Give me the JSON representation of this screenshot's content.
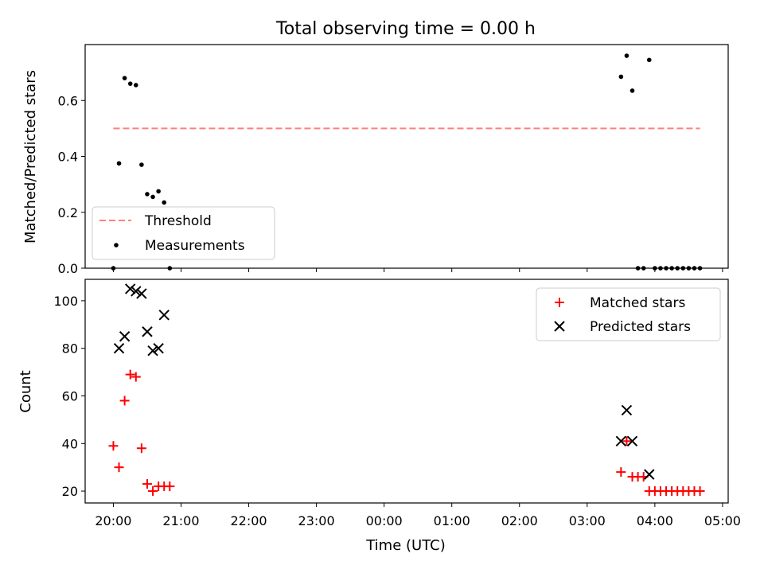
{
  "chart_data": [
    {
      "type": "scatter",
      "title": "Total observing time = 0.00 h",
      "ylabel": "Matched/Predicted stars",
      "xlabel": "",
      "ylim": [
        0,
        0.8
      ],
      "yticks": [
        0.0,
        0.2,
        0.4,
        0.6
      ],
      "ytick_labels": [
        "0.0",
        "0.2",
        "0.4",
        "0.6"
      ],
      "grid": false,
      "legend_position": "lower-left",
      "threshold": {
        "name": "Threshold",
        "value": 0.5,
        "x_start": "20:00",
        "x_end": "04:40",
        "color": "#ff7f7f",
        "style": "dashed"
      },
      "series": [
        {
          "name": "Measurements",
          "color": "#000000",
          "marker": "dot",
          "points": [
            {
              "x": "20:00",
              "y": 0.0
            },
            {
              "x": "20:05",
              "y": 0.375
            },
            {
              "x": "20:10",
              "y": 0.68
            },
            {
              "x": "20:15",
              "y": 0.66
            },
            {
              "x": "20:20",
              "y": 0.655
            },
            {
              "x": "20:25",
              "y": 0.37
            },
            {
              "x": "20:30",
              "y": 0.265
            },
            {
              "x": "20:35",
              "y": 0.255
            },
            {
              "x": "20:40",
              "y": 0.275
            },
            {
              "x": "20:45",
              "y": 0.235
            },
            {
              "x": "20:50",
              "y": 0.0
            },
            {
              "x": "03:30",
              "y": 0.685
            },
            {
              "x": "03:35",
              "y": 0.76
            },
            {
              "x": "03:40",
              "y": 0.635
            },
            {
              "x": "03:45",
              "y": 0.0
            },
            {
              "x": "03:50",
              "y": 0.0
            },
            {
              "x": "03:55",
              "y": 0.745
            },
            {
              "x": "04:00",
              "y": 0.0
            },
            {
              "x": "04:05",
              "y": 0.0
            },
            {
              "x": "04:10",
              "y": 0.0
            },
            {
              "x": "04:15",
              "y": 0.0
            },
            {
              "x": "04:20",
              "y": 0.0
            },
            {
              "x": "04:25",
              "y": 0.0
            },
            {
              "x": "04:30",
              "y": 0.0
            },
            {
              "x": "04:35",
              "y": 0.0
            },
            {
              "x": "04:40",
              "y": 0.0
            }
          ]
        }
      ]
    },
    {
      "type": "scatter",
      "title": "",
      "ylabel": "Count",
      "xlabel": "Time (UTC)",
      "ylim": [
        15,
        109
      ],
      "yticks": [
        20,
        40,
        60,
        80,
        100
      ],
      "ytick_labels": [
        "20",
        "40",
        "60",
        "80",
        "100"
      ],
      "grid": false,
      "legend_position": "upper-right",
      "series": [
        {
          "name": "Matched stars",
          "color": "#ff0000",
          "marker": "plus",
          "points": [
            {
              "x": "20:00",
              "y": 39
            },
            {
              "x": "20:05",
              "y": 30
            },
            {
              "x": "20:10",
              "y": 58
            },
            {
              "x": "20:15",
              "y": 69
            },
            {
              "x": "20:20",
              "y": 68
            },
            {
              "x": "20:25",
              "y": 38
            },
            {
              "x": "20:30",
              "y": 23
            },
            {
              "x": "20:35",
              "y": 20
            },
            {
              "x": "20:40",
              "y": 22
            },
            {
              "x": "20:45",
              "y": 22
            },
            {
              "x": "20:50",
              "y": 22
            },
            {
              "x": "03:30",
              "y": 28
            },
            {
              "x": "03:35",
              "y": 41
            },
            {
              "x": "03:40",
              "y": 26
            },
            {
              "x": "03:45",
              "y": 26
            },
            {
              "x": "03:50",
              "y": 26
            },
            {
              "x": "03:55",
              "y": 20
            },
            {
              "x": "04:00",
              "y": 20
            },
            {
              "x": "04:05",
              "y": 20
            },
            {
              "x": "04:10",
              "y": 20
            },
            {
              "x": "04:15",
              "y": 20
            },
            {
              "x": "04:20",
              "y": 20
            },
            {
              "x": "04:25",
              "y": 20
            },
            {
              "x": "04:30",
              "y": 20
            },
            {
              "x": "04:35",
              "y": 20
            },
            {
              "x": "04:40",
              "y": 20
            }
          ]
        },
        {
          "name": "Predicted stars",
          "color": "#000000",
          "marker": "x",
          "points": [
            {
              "x": "20:05",
              "y": 80
            },
            {
              "x": "20:10",
              "y": 85
            },
            {
              "x": "20:15",
              "y": 105
            },
            {
              "x": "20:20",
              "y": 104
            },
            {
              "x": "20:25",
              "y": 103
            },
            {
              "x": "20:30",
              "y": 87
            },
            {
              "x": "20:35",
              "y": 79
            },
            {
              "x": "20:40",
              "y": 80
            },
            {
              "x": "20:45",
              "y": 94
            },
            {
              "x": "03:30",
              "y": 41
            },
            {
              "x": "03:35",
              "y": 54
            },
            {
              "x": "03:40",
              "y": 41
            },
            {
              "x": "03:55",
              "y": 27
            }
          ]
        }
      ]
    }
  ],
  "x_axis": {
    "ticks": [
      "20:00",
      "21:00",
      "22:00",
      "23:00",
      "00:00",
      "01:00",
      "02:00",
      "03:00",
      "04:00",
      "05:00"
    ],
    "range": [
      "19:35",
      "05:05"
    ]
  }
}
